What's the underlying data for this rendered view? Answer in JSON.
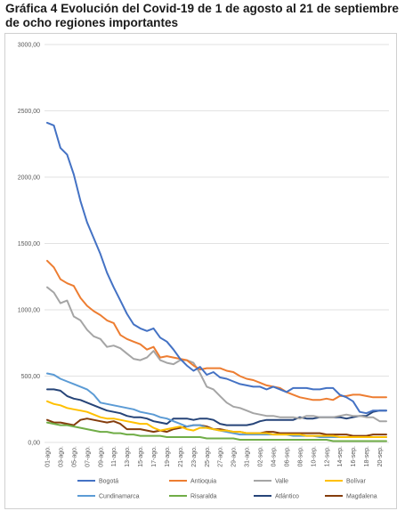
{
  "heading": "Gráfica 4 Evolución del Covid-19 de 1 de agosto al 21 de septiembre de ocho regiones importantes",
  "chart_data": {
    "type": "line",
    "title": "",
    "xlabel": "",
    "ylabel": "",
    "ylim": [
      0,
      3000
    ],
    "y_ticks": [
      "0,00",
      "500,00",
      "1000,00",
      "1500,00",
      "2000,00",
      "2500,00",
      "3000,00"
    ],
    "y_tick_values": [
      0,
      500,
      1000,
      1500,
      2000,
      2500,
      3000
    ],
    "x_ticks": [
      "01-ago.",
      "03-ago.",
      "05-ago.",
      "07-ago.",
      "09-ago.",
      "11-ago.",
      "13-ago.",
      "15-ago.",
      "17-ago.",
      "19-ago.",
      "21-ago.",
      "23-ago.",
      "25-ago.",
      "27-ago.",
      "29-ago.",
      "31-ago.",
      "02-sep.",
      "04-sep.",
      "06-sep.",
      "08-sep.",
      "10-sep.",
      "12-sep.",
      "14-sep.",
      "16-sep.",
      "18-sep.",
      "20-sep."
    ],
    "x": [
      "01-ago.",
      "02-ago.",
      "03-ago.",
      "04-ago.",
      "05-ago.",
      "06-ago.",
      "07-ago.",
      "08-ago.",
      "09-ago.",
      "10-ago.",
      "11-ago.",
      "12-ago.",
      "13-ago.",
      "14-ago.",
      "15-ago.",
      "16-ago.",
      "17-ago.",
      "18-ago.",
      "19-ago.",
      "20-ago.",
      "21-ago.",
      "22-ago.",
      "23-ago.",
      "24-ago.",
      "25-ago.",
      "26-ago.",
      "27-ago.",
      "28-ago.",
      "29-ago.",
      "30-ago.",
      "31-ago.",
      "01-sep.",
      "02-sep.",
      "03-sep.",
      "04-sep.",
      "05-sep.",
      "06-sep.",
      "07-sep.",
      "08-sep.",
      "09-sep.",
      "10-sep.",
      "11-sep.",
      "12-sep.",
      "13-sep.",
      "14-sep.",
      "15-sep.",
      "16-sep.",
      "17-sep.",
      "18-sep.",
      "19-sep.",
      "20-sep.",
      "21-sep."
    ],
    "legend_position": "bottom",
    "grid": true,
    "series": [
      {
        "name": "Bogotá",
        "color": "#4472c4",
        "values": [
          2410,
          2390,
          2220,
          2170,
          2020,
          1820,
          1660,
          1540,
          1420,
          1280,
          1170,
          1070,
          970,
          890,
          860,
          840,
          860,
          790,
          760,
          700,
          630,
          580,
          540,
          570,
          510,
          530,
          490,
          480,
          460,
          440,
          430,
          420,
          420,
          400,
          420,
          400,
          380,
          410,
          410,
          410,
          400,
          400,
          410,
          410,
          360,
          340,
          310,
          230,
          220,
          240,
          240,
          240
        ]
      },
      {
        "name": "Antioquia",
        "color": "#ed7d31",
        "values": [
          1370,
          1320,
          1230,
          1200,
          1180,
          1090,
          1030,
          990,
          960,
          920,
          900,
          810,
          780,
          760,
          740,
          700,
          720,
          640,
          650,
          640,
          630,
          620,
          580,
          550,
          560,
          560,
          560,
          540,
          530,
          500,
          480,
          470,
          450,
          430,
          420,
          410,
          380,
          360,
          340,
          330,
          320,
          320,
          330,
          320,
          350,
          350,
          360,
          360,
          350,
          340,
          340,
          340
        ]
      },
      {
        "name": "Valle",
        "color": "#a5a5a5",
        "values": [
          1170,
          1130,
          1050,
          1070,
          950,
          920,
          850,
          800,
          780,
          720,
          730,
          710,
          670,
          630,
          620,
          640,
          690,
          620,
          600,
          590,
          620,
          620,
          600,
          520,
          420,
          400,
          350,
          300,
          270,
          260,
          240,
          220,
          210,
          200,
          200,
          190,
          190,
          190,
          180,
          200,
          200,
          190,
          190,
          190,
          200,
          210,
          200,
          200,
          190,
          190,
          160,
          160
        ]
      },
      {
        "name": "Bolívar",
        "color": "#ffc000",
        "values": [
          310,
          290,
          280,
          260,
          250,
          240,
          230,
          210,
          190,
          180,
          180,
          170,
          160,
          150,
          140,
          140,
          110,
          90,
          100,
          110,
          120,
          100,
          90,
          110,
          110,
          100,
          90,
          90,
          80,
          80,
          70,
          70,
          70,
          70,
          60,
          60,
          60,
          60,
          60,
          50,
          50,
          50,
          50,
          50,
          40,
          40,
          40,
          40,
          40,
          40,
          40,
          40
        ]
      },
      {
        "name": "Cundinamarca",
        "color": "#5b9bd5",
        "values": [
          520,
          510,
          480,
          460,
          440,
          420,
          400,
          360,
          300,
          290,
          280,
          270,
          260,
          250,
          230,
          220,
          210,
          190,
          180,
          160,
          140,
          120,
          130,
          130,
          110,
          100,
          90,
          80,
          70,
          60,
          60,
          60,
          60,
          60,
          60,
          60,
          60,
          50,
          50,
          50,
          50,
          40,
          40,
          40,
          40,
          40,
          40,
          40,
          40,
          40,
          40,
          40
        ]
      },
      {
        "name": "Risaralda",
        "color": "#70ad47",
        "values": [
          150,
          140,
          130,
          130,
          120,
          110,
          100,
          90,
          80,
          80,
          70,
          70,
          60,
          60,
          50,
          50,
          50,
          50,
          40,
          40,
          40,
          40,
          40,
          40,
          30,
          30,
          30,
          30,
          30,
          20,
          20,
          20,
          20,
          20,
          20,
          20,
          20,
          20,
          20,
          20,
          20,
          20,
          20,
          10,
          10,
          10,
          10,
          10,
          10,
          10,
          10,
          10
        ]
      },
      {
        "name": "Atlántico",
        "color": "#264478",
        "values": [
          400,
          400,
          390,
          350,
          330,
          320,
          300,
          280,
          260,
          240,
          230,
          220,
          200,
          190,
          190,
          180,
          160,
          150,
          140,
          180,
          180,
          180,
          170,
          180,
          180,
          170,
          140,
          130,
          130,
          130,
          130,
          140,
          160,
          170,
          170,
          170,
          170,
          170,
          190,
          180,
          180,
          190,
          190,
          190,
          190,
          180,
          190,
          200,
          200,
          230,
          240,
          240
        ]
      },
      {
        "name": "Magdalena",
        "color": "#843c0c",
        "values": [
          170,
          150,
          150,
          140,
          130,
          170,
          180,
          170,
          160,
          150,
          160,
          140,
          100,
          100,
          100,
          90,
          80,
          90,
          80,
          100,
          110,
          120,
          130,
          130,
          120,
          100,
          100,
          90,
          80,
          80,
          70,
          70,
          70,
          80,
          80,
          70,
          70,
          70,
          70,
          70,
          70,
          70,
          60,
          60,
          60,
          60,
          50,
          50,
          50,
          60,
          60,
          60
        ]
      }
    ]
  }
}
